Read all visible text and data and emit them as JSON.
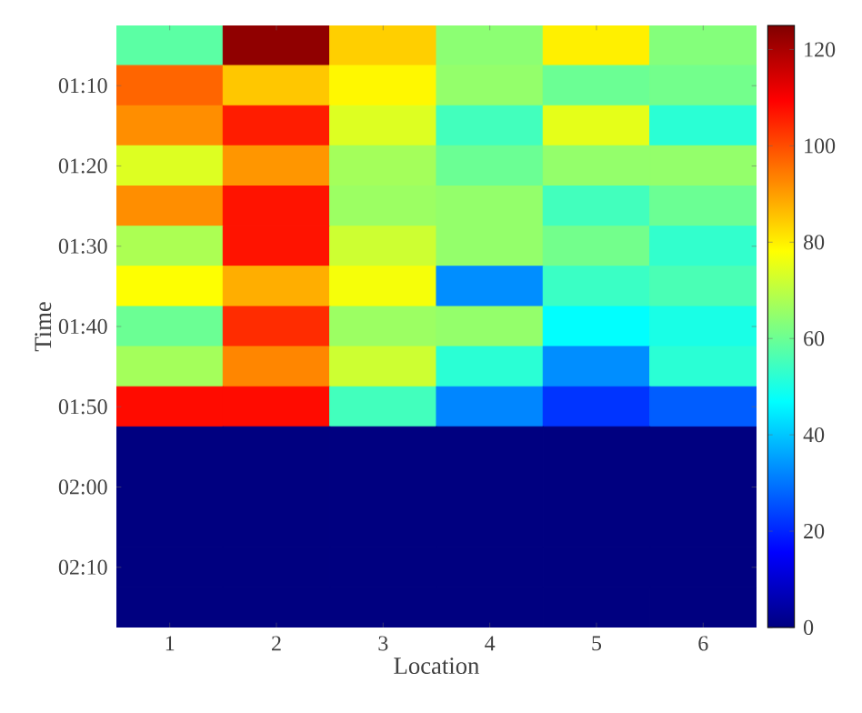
{
  "chart_data": {
    "type": "heatmap",
    "xlabel": "Location",
    "ylabel": "Time",
    "categories": [
      "1",
      "2",
      "3",
      "4",
      "5",
      "6"
    ],
    "y_categories": [
      null,
      "01:10",
      null,
      "01:20",
      null,
      "01:30",
      null,
      "01:40",
      null,
      "01:50",
      null,
      "02:00",
      null,
      "02:10",
      null
    ],
    "cells": [
      [
        58,
        123,
        84,
        64,
        80,
        63
      ],
      [
        97,
        85,
        79,
        65,
        60,
        61
      ],
      [
        92,
        106,
        74,
        55,
        75,
        52
      ],
      [
        74,
        91,
        67,
        60,
        65,
        65
      ],
      [
        92,
        107,
        66,
        65,
        55,
        60
      ],
      [
        68,
        107,
        72,
        65,
        61,
        53
      ],
      [
        78,
        88,
        77,
        33,
        54,
        56
      ],
      [
        60,
        104,
        66,
        65,
        47,
        50
      ],
      [
        67,
        93,
        72,
        52,
        33,
        52
      ],
      [
        108,
        108,
        55,
        32,
        22,
        27
      ],
      [
        0,
        0,
        0,
        0,
        0,
        0
      ],
      [
        0,
        0,
        0,
        0,
        0,
        0
      ],
      [
        0,
        0,
        0,
        0,
        0,
        0
      ],
      [
        0,
        0,
        0,
        0,
        0,
        0
      ],
      [
        0,
        0,
        0,
        0,
        0,
        0
      ]
    ],
    "clim": [
      0,
      125
    ],
    "cticks": [
      0,
      20,
      40,
      60,
      80,
      100,
      120
    ]
  }
}
